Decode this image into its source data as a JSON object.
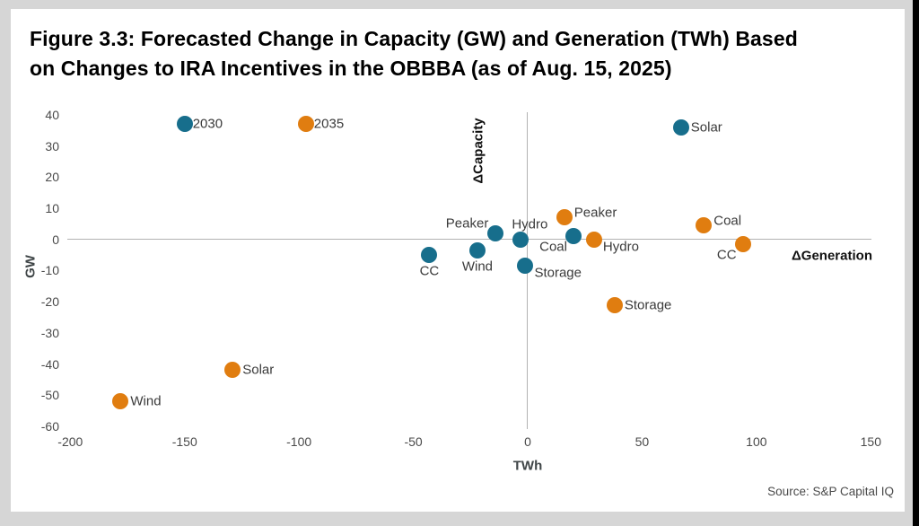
{
  "figure": {
    "title_line1": "Figure 3.3: Forecasted Change in Capacity (GW) and Generation (TWh) Based",
    "title_line2": "on Changes to IRA Incentives in the OBBBA (as of Aug. 15, 2025)",
    "source": "Source: S&P Capital IQ"
  },
  "colors": {
    "teal_2030": "#176e8c",
    "orange_2035": "#e07d10",
    "zero_line": "#b3b3b3",
    "frame_gray": "#d6d6d6",
    "edge_black": "#000000"
  },
  "chart_data": {
    "type": "scatter",
    "title": "Figure 3.3: Forecasted Change in Capacity (GW) and Generation (TWh) Based on Changes to IRA Incentives in the OBBBA (as of Aug. 15, 2025)",
    "xlabel": "TWh",
    "ylabel": "GW",
    "x_axis_annotation": "ΔGeneration",
    "y_axis_annotation": "ΔCapacity",
    "xlim": [
      -200,
      150
    ],
    "ylim": [
      -60,
      40
    ],
    "x_ticks": [
      -200,
      -150,
      -100,
      -50,
      0,
      50,
      100,
      150
    ],
    "y_ticks": [
      40,
      30,
      20,
      10,
      0,
      -10,
      -20,
      -30,
      -40,
      -50,
      -60
    ],
    "grid": false,
    "legend_position": "top-left-in-plot",
    "legend": [
      {
        "name": "2030",
        "color": "#176e8c",
        "x": -150,
        "y": 37
      },
      {
        "name": "2035",
        "color": "#e07d10",
        "x": -97,
        "y": 37
      }
    ],
    "series": [
      {
        "name": "2030",
        "color": "#176e8c",
        "points": [
          {
            "label": "CC",
            "x": -43,
            "y": -5,
            "label_pos": "below"
          },
          {
            "label": "Wind",
            "x": -22,
            "y": -3.5,
            "label_pos": "below"
          },
          {
            "label": "Peaker",
            "x": -14,
            "y": 2,
            "label_pos": "left-above"
          },
          {
            "label": "Hydro",
            "x": -3,
            "y": 0,
            "label_pos": "above"
          },
          {
            "label": "Storage",
            "x": -1,
            "y": -8.5,
            "label_pos": "right-below"
          },
          {
            "label": "Coal",
            "x": 20,
            "y": 1,
            "label_pos": "left-below"
          },
          {
            "label": "Solar",
            "x": 67,
            "y": 36,
            "label_pos": "right"
          }
        ]
      },
      {
        "name": "2035",
        "color": "#e07d10",
        "points": [
          {
            "label": "Wind",
            "x": -178,
            "y": -52,
            "label_pos": "right"
          },
          {
            "label": "Solar",
            "x": -129,
            "y": -42,
            "label_pos": "right"
          },
          {
            "label": "Peaker",
            "x": 16,
            "y": 7,
            "label_pos": "right-above"
          },
          {
            "label": "Hydro",
            "x": 29,
            "y": 0,
            "label_pos": "right-below"
          },
          {
            "label": "Storage",
            "x": 38,
            "y": -21,
            "label_pos": "right"
          },
          {
            "label": "Coal",
            "x": 77,
            "y": 4.5,
            "label_pos": "right-above"
          },
          {
            "label": "CC",
            "x": 94,
            "y": -1.5,
            "label_pos": "left-below"
          }
        ]
      }
    ],
    "source": "Source: S&P Capital IQ"
  }
}
